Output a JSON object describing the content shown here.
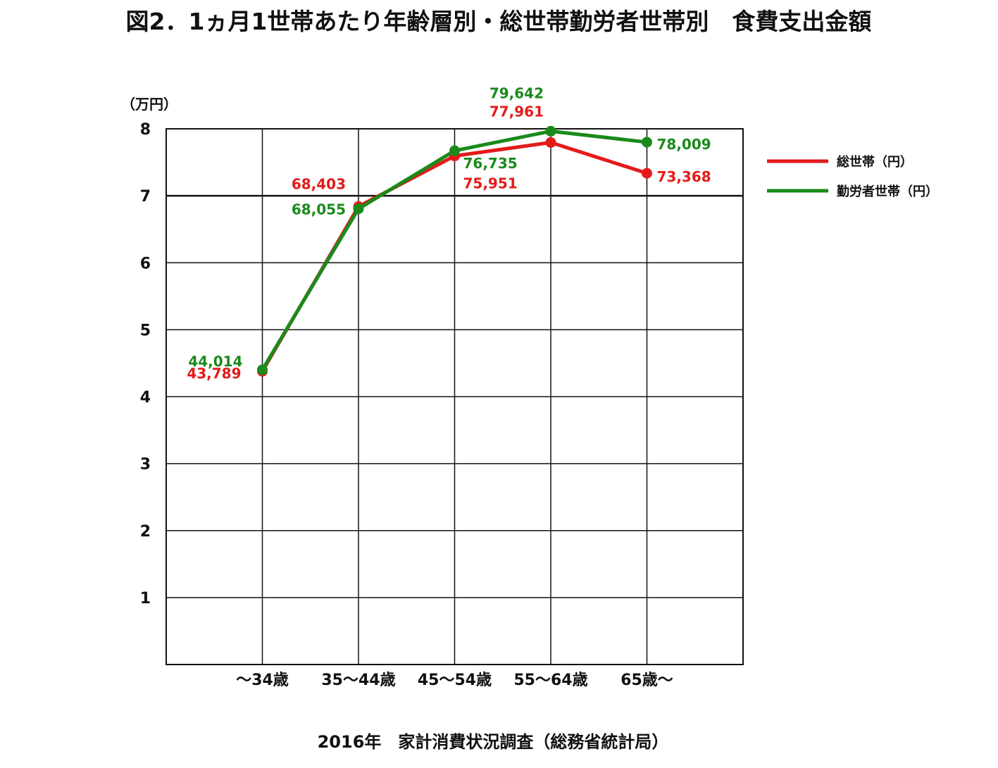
{
  "chart_data": {
    "type": "line",
    "title": "図2．1ヵ月1世帯あたり年齢層別・総世帯勤労者世帯別　食費支出金額",
    "y_unit_label": "（万円）",
    "ylim": [
      0,
      8
    ],
    "y_ticks": [
      1,
      2,
      3,
      4,
      5,
      6,
      7,
      8
    ],
    "y_tick_labels": [
      "1",
      "2",
      "3",
      "4",
      "5",
      "6",
      "7",
      "8"
    ],
    "categories": [
      "～34歳",
      "35～44歳",
      "45～54歳",
      "55～64歳",
      "65歳～"
    ],
    "grid": true,
    "legend_position": "right",
    "series": [
      {
        "name": "総世帯（円）",
        "color": "#e41a1a",
        "values": [
          43789,
          68403,
          75951,
          77961,
          73368
        ],
        "labels": [
          "43,789",
          "68,403",
          "75,951",
          "77,961",
          "73,368"
        ]
      },
      {
        "name": "勤労者世帯（円）",
        "color": "#1a8a1a",
        "values": [
          44014,
          68055,
          76735,
          79642,
          78009
        ],
        "labels": [
          "44,014",
          "68,055",
          "76,735",
          "79,642",
          "78,009"
        ]
      }
    ],
    "source": "2016年　家計消費状況調査（総務省統計局）"
  }
}
